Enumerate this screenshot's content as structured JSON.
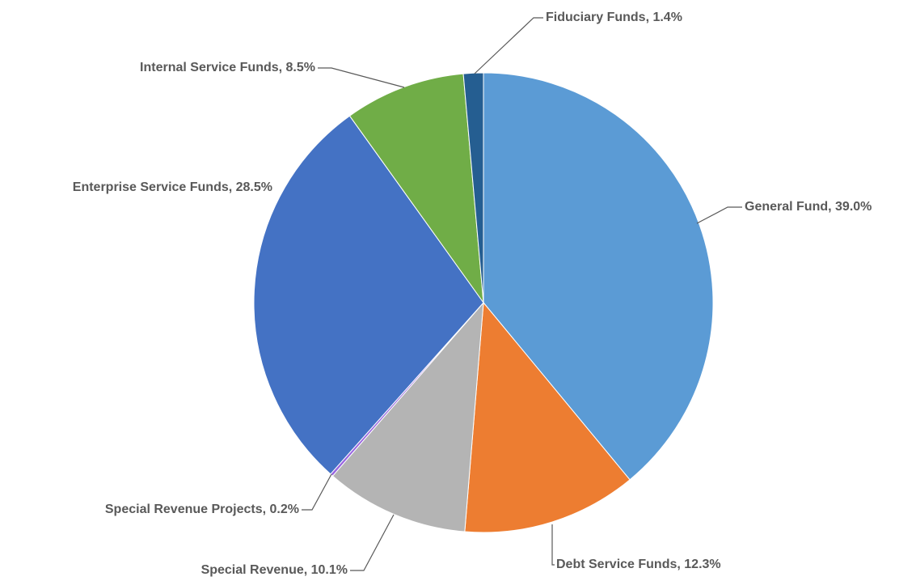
{
  "chart_data": {
    "type": "pie",
    "values": [
      39.0,
      12.3,
      10.1,
      0.2,
      28.5,
      8.5,
      1.4
    ],
    "value_labels": [
      "General Fund, 39.0%",
      "Debt Service Funds, 12.3%",
      "Special Revenue, 10.1%",
      "Special Revenue Projects, 0.2%",
      "Enterprise Service Funds, 28.5%",
      "Internal Service Funds, 8.5%",
      "Fiduciary Funds, 1.4%"
    ],
    "colors": [
      "#5b9bd5",
      "#ed7d31",
      "#b4b4b4",
      "#9966e0",
      "#4472c4",
      "#70ad47",
      "#255e91"
    ]
  }
}
